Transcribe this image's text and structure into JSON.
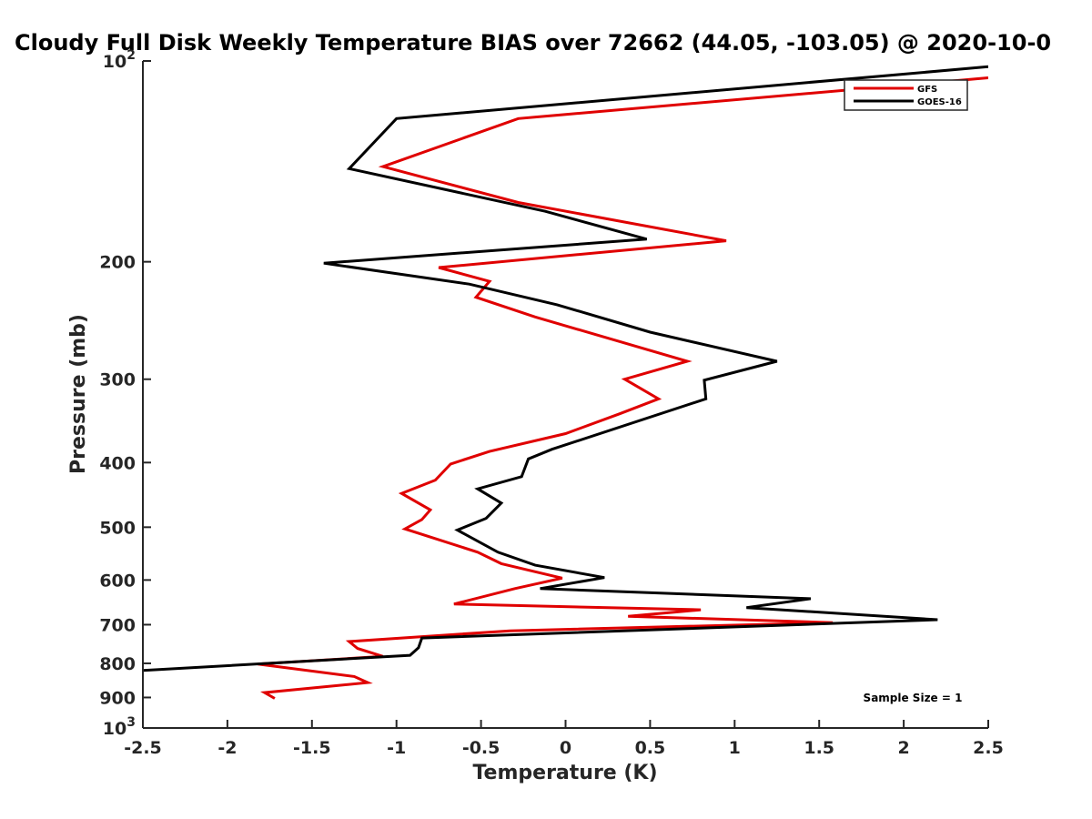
{
  "chart_data": {
    "type": "line",
    "title": "Cloudy Full Disk Weekly Temperature BIAS over 72662 (44.05, -103.05) @ 2020-10-0",
    "xlabel": "Temperature (K)",
    "ylabel": "Pressure (mb)",
    "xlim": [
      -2.5,
      2.5
    ],
    "ylim": [
      100,
      1000
    ],
    "y_scale": "log",
    "y_reversed": true,
    "x_ticks": [
      -2.5,
      -2,
      -1.5,
      -1,
      -0.5,
      0,
      0.5,
      1,
      1.5,
      2,
      2.5
    ],
    "x_tick_labels": [
      "-2.5",
      "-2",
      "-1.5",
      "-1",
      "-0.5",
      "0",
      "0.5",
      "1",
      "1.5",
      "2",
      "2.5"
    ],
    "y_ticks": [
      200,
      300,
      400,
      500,
      600,
      700,
      800,
      900
    ],
    "y_tick_labels": [
      "200",
      "300",
      "400",
      "500",
      "600",
      "700",
      "800",
      "900"
    ],
    "y_tick_top": {
      "base": "10",
      "exp": "2"
    },
    "y_tick_bottom": {
      "base": "10",
      "exp": "3"
    },
    "legend_position": "top-right",
    "grid": false,
    "annotation": "Sample Size = 1",
    "series": [
      {
        "name": "GFS",
        "color": "#e00000",
        "points": [
          [
            2.5,
            106
          ],
          [
            -0.28,
            122
          ],
          [
            -1.08,
            144
          ],
          [
            -0.28,
            163
          ],
          [
            0.95,
            186
          ],
          [
            -0.75,
            204
          ],
          [
            -0.45,
            214
          ],
          [
            -0.53,
            226
          ],
          [
            -0.18,
            242
          ],
          [
            0.72,
            282
          ],
          [
            0.35,
            300
          ],
          [
            0.55,
            321
          ],
          [
            0.32,
            338
          ],
          [
            0.0,
            362
          ],
          [
            -0.45,
            385
          ],
          [
            -0.68,
            402
          ],
          [
            -0.77,
            425
          ],
          [
            -0.97,
            445
          ],
          [
            -0.8,
            471
          ],
          [
            -0.85,
            487
          ],
          [
            -0.95,
            503
          ],
          [
            -0.52,
            545
          ],
          [
            -0.38,
            567
          ],
          [
            -0.02,
            596
          ],
          [
            -0.3,
            618
          ],
          [
            -0.66,
            652
          ],
          [
            0.8,
            665
          ],
          [
            0.37,
            680
          ],
          [
            1.58,
            695
          ],
          [
            -0.33,
            715
          ],
          [
            -1.28,
            742
          ],
          [
            -1.23,
            760
          ],
          [
            -1.08,
            781
          ],
          [
            -1.82,
            802
          ],
          [
            -1.25,
            837
          ],
          [
            -1.17,
            855
          ],
          [
            -1.78,
            885
          ],
          [
            -1.72,
            903
          ]
        ]
      },
      {
        "name": "GOES-16",
        "color": "#000000",
        "points": [
          [
            2.5,
            102
          ],
          [
            -1.0,
            122
          ],
          [
            -1.28,
            145
          ],
          [
            -0.12,
            168
          ],
          [
            0.48,
            185
          ],
          [
            -1.43,
            201
          ],
          [
            -0.57,
            216
          ],
          [
            -0.05,
            232
          ],
          [
            0.5,
            255
          ],
          [
            1.25,
            282
          ],
          [
            0.82,
            301
          ],
          [
            0.83,
            321
          ],
          [
            -0.08,
            382
          ],
          [
            -0.22,
            395
          ],
          [
            -0.26,
            420
          ],
          [
            -0.52,
            438
          ],
          [
            -0.38,
            460
          ],
          [
            -0.47,
            485
          ],
          [
            -0.64,
            505
          ],
          [
            -0.4,
            545
          ],
          [
            -0.18,
            570
          ],
          [
            0.23,
            595
          ],
          [
            -0.15,
            618
          ],
          [
            1.45,
            640
          ],
          [
            1.07,
            660
          ],
          [
            2.2,
            688
          ],
          [
            -0.85,
            733
          ],
          [
            -0.87,
            758
          ],
          [
            -0.92,
            778
          ],
          [
            -2.5,
            820
          ]
        ]
      }
    ]
  }
}
